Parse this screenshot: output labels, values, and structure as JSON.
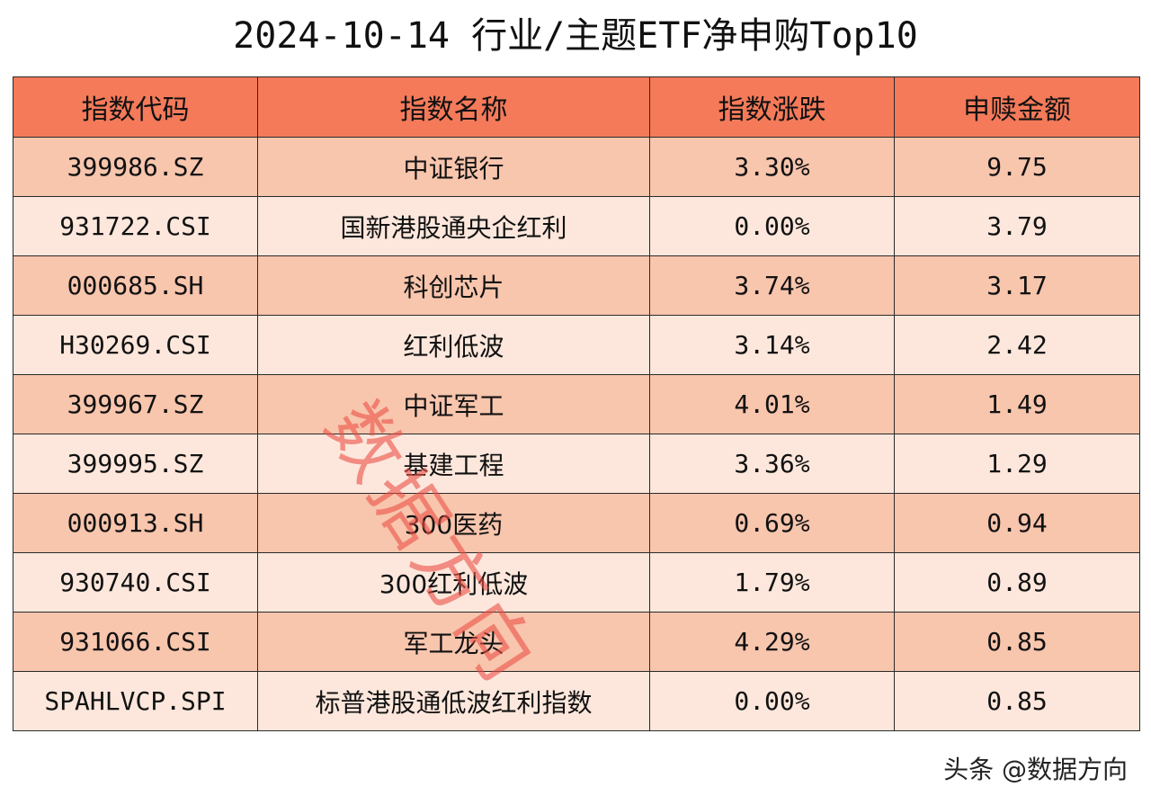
{
  "title": "2024-10-14 行业/主题ETF净申购Top10",
  "table": {
    "headers": [
      "指数代码",
      "指数名称",
      "指数涨跌",
      "申赎金额"
    ],
    "rows": [
      {
        "code": "399986.SZ",
        "name": "中证银行",
        "change": "3.30%",
        "amount": "9.75"
      },
      {
        "code": "931722.CSI",
        "name": "国新港股通央企红利",
        "change": "0.00%",
        "amount": "3.79"
      },
      {
        "code": "000685.SH",
        "name": "科创芯片",
        "change": "3.74%",
        "amount": "3.17"
      },
      {
        "code": "H30269.CSI",
        "name": "红利低波",
        "change": "3.14%",
        "amount": "2.42"
      },
      {
        "code": "399967.SZ",
        "name": "中证军工",
        "change": "4.01%",
        "amount": "1.49"
      },
      {
        "code": "399995.SZ",
        "name": "基建工程",
        "change": "3.36%",
        "amount": "1.29"
      },
      {
        "code": "000913.SH",
        "name": "300医药",
        "change": "0.69%",
        "amount": "0.94"
      },
      {
        "code": "930740.CSI",
        "name": "300红利低波",
        "change": "1.79%",
        "amount": "0.89"
      },
      {
        "code": "931066.CSI",
        "name": "军工龙头",
        "change": "4.29%",
        "amount": "0.85"
      },
      {
        "code": "SPAHLVCP.SPI",
        "name": "标普港股通低波红利指数",
        "change": "0.00%",
        "amount": "0.85"
      }
    ]
  },
  "watermark": "数据方向",
  "source_credit": "头条 @数据方向",
  "colors": {
    "header_bg": "#f47a5a",
    "row_odd_bg": "#f8c5ad",
    "row_even_bg": "#fde7dc",
    "watermark": "#eb5046",
    "border": "#2a2a2a"
  }
}
